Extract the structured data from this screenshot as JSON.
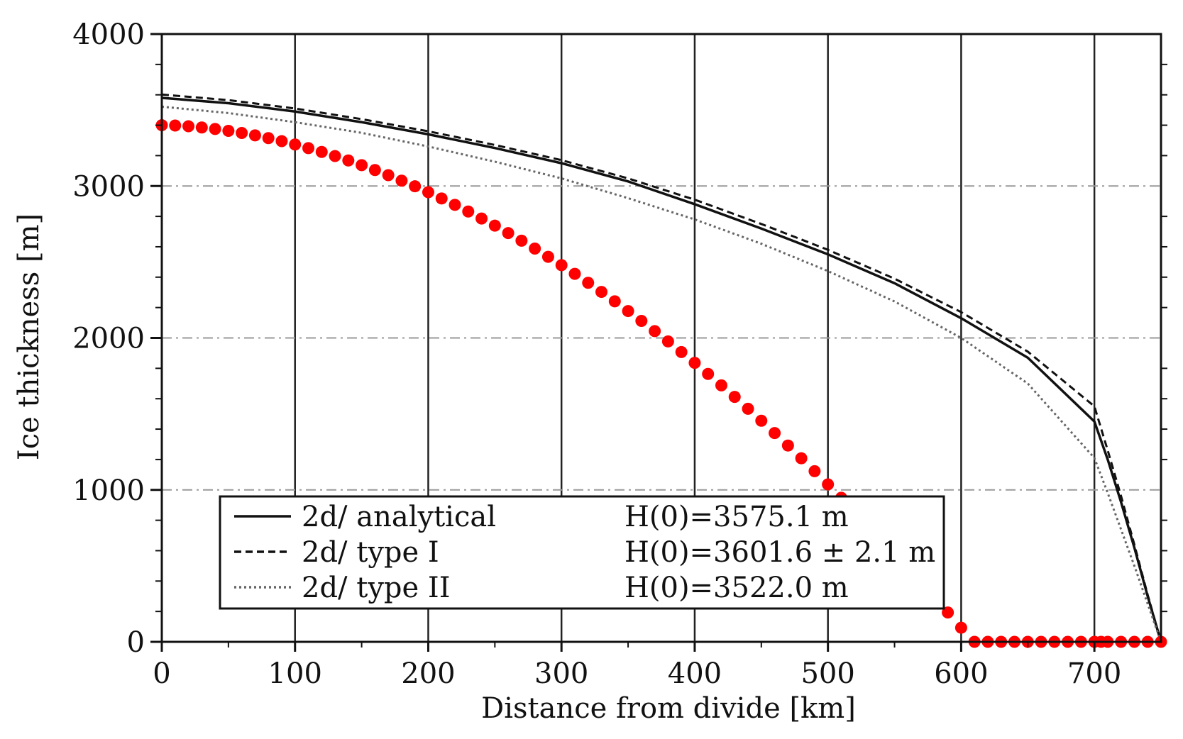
{
  "chart_data": {
    "type": "line",
    "xlabel": "Distance from divide   [km]",
    "ylabel": "Ice thickness   [m]",
    "xlim": [
      0,
      750
    ],
    "ylim": [
      0,
      4000
    ],
    "xticks": [
      0,
      100,
      200,
      300,
      400,
      500,
      600,
      700
    ],
    "yticks": [
      0,
      1000,
      2000,
      3000,
      4000
    ],
    "grid": true,
    "legend_position": "bottom-center",
    "series": [
      {
        "name": "2d/ analytical",
        "annotation": "H(0)=3575.1 m",
        "style": "solid",
        "color": "#111111",
        "x": [
          0,
          50,
          100,
          150,
          200,
          250,
          300,
          350,
          400,
          450,
          500,
          550,
          600,
          650,
          700,
          710,
          720,
          730,
          740,
          750
        ],
        "y": [
          3580,
          3545,
          3490,
          3420,
          3340,
          3250,
          3150,
          3030,
          2880,
          2720,
          2550,
          2360,
          2130,
          1870,
          1450,
          1200,
          920,
          620,
          300,
          0
        ]
      },
      {
        "name": "2d/ type I",
        "annotation": "H(0)=3601.6 ± 2.1 m",
        "style": "dashed",
        "color": "#111111",
        "x": [
          0,
          50,
          100,
          150,
          200,
          250,
          300,
          350,
          400,
          450,
          500,
          550,
          600,
          650,
          700,
          710,
          720,
          730,
          740,
          750
        ],
        "y": [
          3602,
          3565,
          3510,
          3440,
          3360,
          3270,
          3170,
          3050,
          2910,
          2750,
          2580,
          2390,
          2170,
          1910,
          1550,
          1260,
          960,
          640,
          310,
          0
        ]
      },
      {
        "name": "2d/ type II",
        "annotation": "H(0)=3522.0 m",
        "style": "dotted",
        "color": "#666666",
        "x": [
          0,
          50,
          100,
          150,
          200,
          250,
          300,
          350,
          400,
          450,
          500,
          550,
          600,
          650,
          700,
          710,
          720,
          730,
          740,
          750
        ],
        "y": [
          3522,
          3480,
          3420,
          3350,
          3260,
          3160,
          3050,
          2920,
          2780,
          2620,
          2440,
          2240,
          2000,
          1700,
          1210,
          980,
          740,
          500,
          250,
          0
        ]
      },
      {
        "style": "markers",
        "color": "#ff0000",
        "x": [
          0,
          10,
          20,
          30,
          40,
          50,
          60,
          70,
          80,
          90,
          100,
          110,
          120,
          130,
          140,
          150,
          160,
          170,
          180,
          190,
          200,
          210,
          220,
          230,
          240,
          250,
          260,
          270,
          280,
          290,
          300,
          310,
          320,
          330,
          340,
          350,
          360,
          370,
          380,
          390,
          400,
          410,
          420,
          430,
          440,
          450,
          460,
          470,
          480,
          490,
          500,
          510,
          520,
          530,
          540,
          550,
          560,
          570,
          580,
          590,
          600,
          610,
          620,
          630,
          640,
          650,
          660,
          670,
          680,
          690,
          700,
          705,
          710,
          720,
          730,
          740,
          750
        ],
        "y": [
          3400,
          3398,
          3393,
          3385,
          3375,
          3363,
          3349,
          3333,
          3315,
          3295,
          3273,
          3249,
          3224,
          3197,
          3168,
          3137,
          3105,
          3071,
          3035,
          2998,
          2959,
          2918,
          2876,
          2832,
          2786,
          2739,
          2690,
          2640,
          2588,
          2534,
          2479,
          2422,
          2363,
          2303,
          2241,
          2177,
          2112,
          2045,
          1977,
          1907,
          1836,
          1763,
          1688,
          1612,
          1534,
          1455,
          1374,
          1292,
          1208,
          1123,
          1036,
          948,
          858,
          767,
          675,
          581,
          486,
          390,
          292,
          193,
          93,
          0,
          0,
          0,
          0,
          0,
          0,
          0,
          0,
          0,
          0,
          0,
          0,
          0,
          0,
          0,
          0
        ]
      }
    ]
  }
}
